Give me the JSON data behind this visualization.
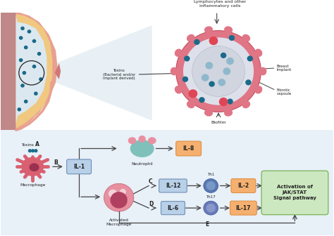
{
  "bg_color": "#ffffff",
  "fig_width": 4.74,
  "fig_height": 3.36,
  "top": {
    "lymph_text": "Lymphocytes and other\ninflammatory cells",
    "toxins_text": "Toxins\n(Bacterial and/or\nimplant derived)",
    "breast_implant_text": "Breast\nImplant",
    "fibrotic_capsule_text": "Fibrotic\ncapsule",
    "biofilm_text": "Biofilm",
    "outer_ring_color": "#e07585",
    "inner_ring_color": "#dde0ea",
    "implant_color": "#d0d5e0",
    "red_dot_color": "#e04555",
    "blue_dot_dark": "#1a6a8a",
    "blue_dot_light": "#90b8cc",
    "skin_color": "#e8a090",
    "fat_color": "#f0c880",
    "tissue_color": "#dce8f0",
    "nipple_color": "#d07878",
    "back_color": "#c08888",
    "wedge_color": "#dde8f0"
  },
  "bot": {
    "macro_color": "#d96070",
    "macro_nucleus": "#9c3050",
    "macro_spike": "#d96070",
    "amac_outer": "#e890a0",
    "amac_vacuole": "#f5d0d8",
    "amac_nucleus": "#b04060",
    "neut_body": "#80c0bb",
    "neut_lobe": "#e890a0",
    "il_blue_fill": "#b8d0e8",
    "il_blue_edge": "#7090b8",
    "il_orange_fill": "#f5b070",
    "il_orange_edge": "#e09040",
    "jak_fill": "#cce8c0",
    "jak_edge": "#80b860",
    "th1_outer": "#5878b0",
    "th1_inner": "#7898c8",
    "th17_outer": "#6878b8",
    "th17_inner": "#8898c8",
    "arrow_color": "#444444",
    "text_color": "#222222",
    "bg_lower": "#e8f0f8"
  }
}
